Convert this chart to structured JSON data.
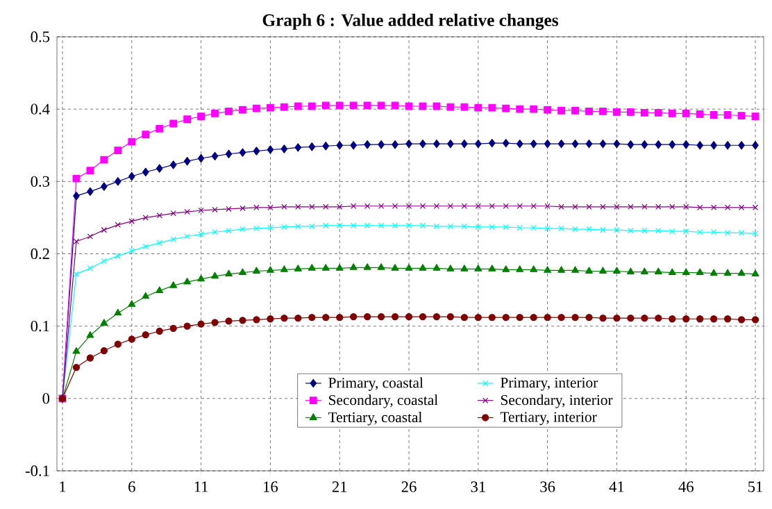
{
  "chart_data": {
    "type": "line",
    "title": "Graph 6 : Value added relative changes",
    "x": [
      1,
      2,
      3,
      4,
      5,
      6,
      7,
      8,
      9,
      10,
      11,
      12,
      13,
      14,
      15,
      16,
      17,
      18,
      19,
      20,
      21,
      22,
      23,
      24,
      25,
      26,
      27,
      28,
      29,
      30,
      31,
      32,
      33,
      34,
      35,
      36,
      37,
      38,
      39,
      40,
      41,
      42,
      43,
      44,
      45,
      46,
      47,
      48,
      49,
      50,
      51
    ],
    "xlim": [
      0.6,
      51.6
    ],
    "xticks": [
      1,
      6,
      11,
      16,
      21,
      26,
      31,
      36,
      41,
      46,
      51
    ],
    "ylim": [
      -0.1,
      0.5
    ],
    "yticks": [
      -0.1,
      0,
      0.1,
      0.2,
      0.3,
      0.4,
      0.5
    ],
    "grid": true,
    "legend": "bottom",
    "series": [
      {
        "name": "Primary, coastal",
        "color": "#000080",
        "marker": "diamond",
        "values": [
          0,
          0.28,
          0.286,
          0.293,
          0.3,
          0.307,
          0.313,
          0.318,
          0.323,
          0.328,
          0.332,
          0.335,
          0.338,
          0.34,
          0.342,
          0.344,
          0.345,
          0.347,
          0.348,
          0.349,
          0.35,
          0.35,
          0.351,
          0.351,
          0.351,
          0.352,
          0.352,
          0.352,
          0.352,
          0.352,
          0.352,
          0.353,
          0.353,
          0.352,
          0.352,
          0.352,
          0.352,
          0.352,
          0.352,
          0.352,
          0.352,
          0.351,
          0.351,
          0.351,
          0.351,
          0.351,
          0.35,
          0.35,
          0.35,
          0.35,
          0.35
        ]
      },
      {
        "name": "Primary, interior",
        "color": "#00ffff",
        "marker": "cross",
        "values": [
          0,
          0.172,
          0.18,
          0.19,
          0.197,
          0.204,
          0.21,
          0.215,
          0.22,
          0.224,
          0.227,
          0.23,
          0.232,
          0.234,
          0.235,
          0.236,
          0.237,
          0.238,
          0.238,
          0.239,
          0.239,
          0.239,
          0.239,
          0.239,
          0.239,
          0.239,
          0.239,
          0.238,
          0.238,
          0.238,
          0.237,
          0.237,
          0.237,
          0.236,
          0.236,
          0.235,
          0.235,
          0.234,
          0.234,
          0.233,
          0.233,
          0.232,
          0.232,
          0.232,
          0.231,
          0.231,
          0.23,
          0.23,
          0.229,
          0.229,
          0.228
        ]
      },
      {
        "name": "Secondary, coastal",
        "color": "#ff00ff",
        "marker": "square",
        "values": [
          0,
          0.304,
          0.315,
          0.33,
          0.343,
          0.355,
          0.365,
          0.373,
          0.38,
          0.386,
          0.39,
          0.394,
          0.397,
          0.399,
          0.401,
          0.402,
          0.403,
          0.404,
          0.404,
          0.405,
          0.405,
          0.405,
          0.405,
          0.405,
          0.405,
          0.404,
          0.404,
          0.404,
          0.403,
          0.403,
          0.402,
          0.402,
          0.401,
          0.4,
          0.4,
          0.399,
          0.398,
          0.398,
          0.397,
          0.397,
          0.396,
          0.396,
          0.395,
          0.395,
          0.394,
          0.394,
          0.393,
          0.392,
          0.392,
          0.391,
          0.39
        ]
      },
      {
        "name": "Secondary, interior",
        "color": "#800080",
        "marker": "cross",
        "values": [
          0,
          0.217,
          0.224,
          0.233,
          0.24,
          0.245,
          0.25,
          0.253,
          0.256,
          0.258,
          0.26,
          0.261,
          0.262,
          0.263,
          0.264,
          0.264,
          0.265,
          0.265,
          0.265,
          0.265,
          0.265,
          0.266,
          0.266,
          0.266,
          0.266,
          0.266,
          0.266,
          0.266,
          0.266,
          0.266,
          0.266,
          0.266,
          0.266,
          0.266,
          0.266,
          0.266,
          0.265,
          0.265,
          0.265,
          0.265,
          0.265,
          0.265,
          0.265,
          0.265,
          0.265,
          0.265,
          0.264,
          0.264,
          0.264,
          0.264,
          0.264
        ]
      },
      {
        "name": "Tertiary, coastal",
        "color": "#008000",
        "marker": "triangle",
        "values": [
          0,
          0.065,
          0.087,
          0.104,
          0.118,
          0.13,
          0.141,
          0.149,
          0.156,
          0.161,
          0.165,
          0.169,
          0.172,
          0.174,
          0.176,
          0.177,
          0.178,
          0.179,
          0.18,
          0.18,
          0.18,
          0.181,
          0.181,
          0.181,
          0.18,
          0.18,
          0.18,
          0.18,
          0.179,
          0.179,
          0.179,
          0.179,
          0.178,
          0.178,
          0.178,
          0.177,
          0.177,
          0.177,
          0.176,
          0.176,
          0.176,
          0.175,
          0.175,
          0.175,
          0.174,
          0.174,
          0.174,
          0.173,
          0.173,
          0.173,
          0.172
        ]
      },
      {
        "name": "Tertiary, interior",
        "color": "#800000",
        "marker": "circle",
        "values": [
          0,
          0.043,
          0.056,
          0.066,
          0.075,
          0.082,
          0.088,
          0.093,
          0.097,
          0.1,
          0.103,
          0.105,
          0.107,
          0.108,
          0.109,
          0.11,
          0.111,
          0.111,
          0.112,
          0.112,
          0.112,
          0.113,
          0.113,
          0.113,
          0.113,
          0.113,
          0.113,
          0.113,
          0.113,
          0.112,
          0.112,
          0.112,
          0.112,
          0.112,
          0.112,
          0.112,
          0.112,
          0.112,
          0.112,
          0.111,
          0.111,
          0.111,
          0.111,
          0.111,
          0.11,
          0.11,
          0.11,
          0.11,
          0.11,
          0.109,
          0.109
        ]
      }
    ]
  }
}
